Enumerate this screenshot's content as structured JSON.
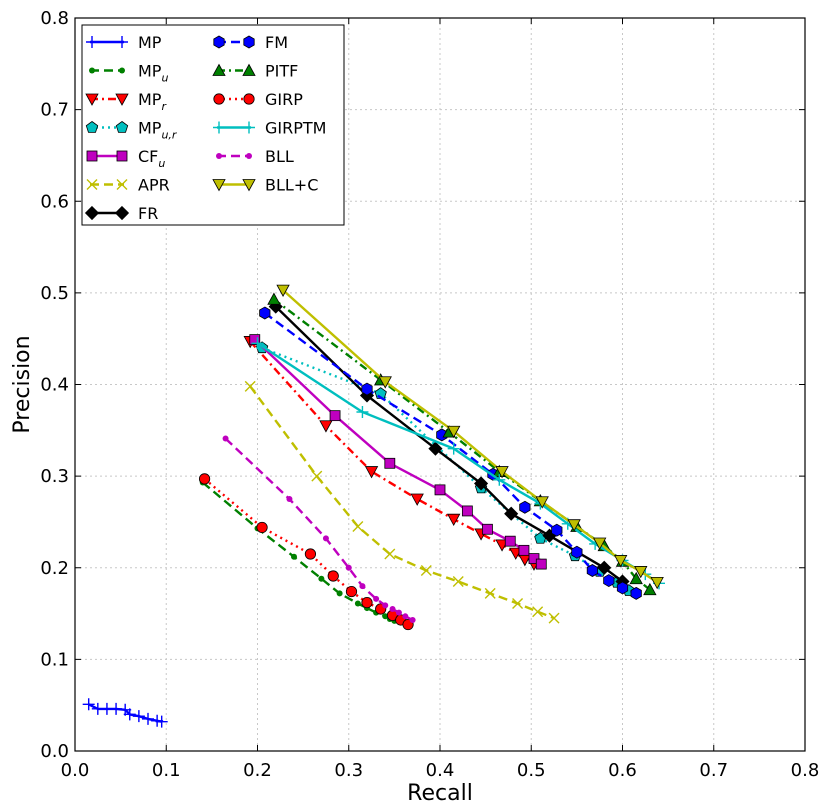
{
  "chart_data": {
    "type": "line",
    "title": "",
    "xlabel": "Recall",
    "ylabel": "Precision",
    "xlim": [
      0.0,
      0.8
    ],
    "ylim": [
      0.0,
      0.8
    ],
    "xticks": [
      "0.0",
      "0.1",
      "0.2",
      "0.3",
      "0.4",
      "0.5",
      "0.6",
      "0.7",
      "0.8"
    ],
    "yticks": [
      "0.0",
      "0.1",
      "0.2",
      "0.3",
      "0.4",
      "0.5",
      "0.6",
      "0.7",
      "0.8"
    ],
    "grid": true,
    "legend_position": "top-left",
    "series": [
      {
        "name": "MP",
        "sub": "",
        "color": "#0000ff",
        "dash": "solid",
        "marker": "plus",
        "x": [
          0.015,
          0.025,
          0.035,
          0.045,
          0.055,
          0.06,
          0.07,
          0.08,
          0.09,
          0.095
        ],
        "y": [
          0.051,
          0.046,
          0.046,
          0.046,
          0.045,
          0.04,
          0.038,
          0.035,
          0.033,
          0.032
        ]
      },
      {
        "name": "MP",
        "sub": "u",
        "color": "#008000",
        "dash": "dashed",
        "marker": "dot",
        "x": [
          0.14,
          0.2,
          0.24,
          0.27,
          0.29,
          0.31,
          0.32,
          0.33,
          0.34,
          0.345,
          0.35
        ],
        "y": [
          0.293,
          0.243,
          0.212,
          0.188,
          0.172,
          0.161,
          0.156,
          0.151,
          0.147,
          0.144,
          0.142
        ]
      },
      {
        "name": "MP",
        "sub": "r",
        "color": "#ff0000",
        "dash": "dashdot",
        "marker": "triangle-down",
        "x": [
          0.192,
          0.275,
          0.325,
          0.375,
          0.415,
          0.445,
          0.468,
          0.483,
          0.493,
          0.503
        ],
        "y": [
          0.447,
          0.355,
          0.305,
          0.275,
          0.253,
          0.237,
          0.225,
          0.216,
          0.209,
          0.204
        ]
      },
      {
        "name": "MP",
        "sub": "u,r",
        "color": "#00bfbf",
        "dash": "dotted",
        "marker": "pentagon",
        "x": [
          0.205,
          0.335,
          0.445,
          0.51,
          0.548,
          0.575,
          0.594,
          0.607
        ],
        "y": [
          0.44,
          0.39,
          0.287,
          0.232,
          0.213,
          0.196,
          0.184,
          0.175
        ]
      },
      {
        "name": "CF",
        "sub": "u",
        "color": "#bf00bf",
        "dash": "solid",
        "marker": "square",
        "x": [
          0.197,
          0.285,
          0.345,
          0.4,
          0.43,
          0.452,
          0.477,
          0.492,
          0.503,
          0.511
        ],
        "y": [
          0.449,
          0.366,
          0.314,
          0.285,
          0.262,
          0.242,
          0.229,
          0.219,
          0.21,
          0.204
        ]
      },
      {
        "name": "APR",
        "sub": "",
        "color": "#bfbf00",
        "dash": "dashed",
        "marker": "x",
        "x": [
          0.192,
          0.265,
          0.31,
          0.345,
          0.385,
          0.42,
          0.455,
          0.485,
          0.507,
          0.525
        ],
        "y": [
          0.398,
          0.3,
          0.245,
          0.215,
          0.197,
          0.185,
          0.172,
          0.161,
          0.152,
          0.145
        ]
      },
      {
        "name": "FR",
        "sub": "",
        "color": "#000000",
        "dash": "solid",
        "marker": "diamond",
        "x": [
          0.22,
          0.32,
          0.395,
          0.445,
          0.478,
          0.52,
          0.58,
          0.6
        ],
        "y": [
          0.485,
          0.388,
          0.33,
          0.292,
          0.259,
          0.235,
          0.2,
          0.185
        ]
      },
      {
        "name": "FM",
        "sub": "",
        "color": "#0000ff",
        "dash": "dashed",
        "marker": "hexagon",
        "x": [
          0.208,
          0.32,
          0.402,
          0.458,
          0.493,
          0.528,
          0.55,
          0.567,
          0.585,
          0.6,
          0.615
        ],
        "y": [
          0.478,
          0.395,
          0.345,
          0.302,
          0.266,
          0.241,
          0.217,
          0.197,
          0.186,
          0.178,
          0.172
        ]
      },
      {
        "name": "PITF",
        "sub": "",
        "color": "#008000",
        "dash": "dashdot",
        "marker": "triangle-up",
        "x": [
          0.218,
          0.335,
          0.41,
          0.465,
          0.51,
          0.55,
          0.58,
          0.6,
          0.615,
          0.63
        ],
        "y": [
          0.493,
          0.405,
          0.348,
          0.305,
          0.273,
          0.245,
          0.224,
          0.207,
          0.188,
          0.176
        ]
      },
      {
        "name": "GIRP",
        "sub": "",
        "color": "#ff0000",
        "dash": "dotted",
        "marker": "circle",
        "x": [
          0.142,
          0.205,
          0.258,
          0.283,
          0.303,
          0.32,
          0.335,
          0.348,
          0.357,
          0.365
        ],
        "y": [
          0.297,
          0.244,
          0.215,
          0.191,
          0.174,
          0.162,
          0.155,
          0.148,
          0.143,
          0.138
        ]
      },
      {
        "name": "GIRPTM",
        "sub": "",
        "color": "#00bfbf",
        "dash": "solid",
        "marker": "plus",
        "x": [
          0.2,
          0.315,
          0.415,
          0.465,
          0.51,
          0.54,
          0.57,
          0.6,
          0.625,
          0.64
        ],
        "y": [
          0.445,
          0.37,
          0.33,
          0.296,
          0.27,
          0.248,
          0.226,
          0.208,
          0.193,
          0.183
        ]
      },
      {
        "name": "BLL",
        "sub": "",
        "color": "#bf00bf",
        "dash": "dashed",
        "marker": "dot",
        "x": [
          0.165,
          0.235,
          0.275,
          0.3,
          0.315,
          0.33,
          0.34,
          0.348,
          0.355,
          0.362,
          0.37
        ],
        "y": [
          0.341,
          0.275,
          0.232,
          0.2,
          0.18,
          0.166,
          0.159,
          0.155,
          0.151,
          0.147,
          0.143
        ]
      },
      {
        "name": "BLL+C",
        "sub": "",
        "color": "#bfbf00",
        "dash": "solid",
        "marker": "triangle-down",
        "x": [
          0.228,
          0.34,
          0.415,
          0.468,
          0.512,
          0.547,
          0.575,
          0.598,
          0.62,
          0.638
        ],
        "y": [
          0.503,
          0.403,
          0.349,
          0.305,
          0.272,
          0.247,
          0.227,
          0.208,
          0.196,
          0.184
        ]
      }
    ]
  }
}
